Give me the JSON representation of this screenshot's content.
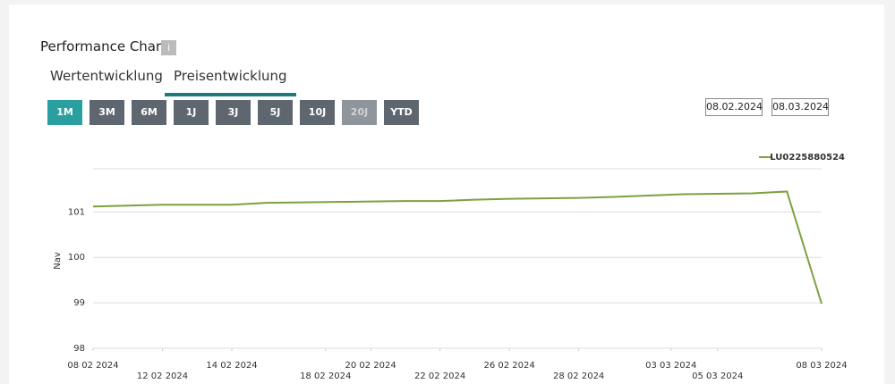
{
  "header": {
    "title": "Performance Chart",
    "info": "i"
  },
  "tabs": [
    "Wertentwicklung",
    "Preisentwicklung"
  ],
  "periods": [
    "1M",
    "3M",
    "6M",
    "1J",
    "3J",
    "5J",
    "10J",
    "20J",
    "YTD"
  ],
  "date_range": {
    "from": "08.02.2024",
    "to": "08.03.2024"
  },
  "chart_data": {
    "type": "line",
    "y_label": "Nav",
    "x": [
      0,
      1,
      2,
      3,
      4,
      5,
      6,
      7,
      8,
      9,
      10,
      11,
      12,
      13,
      14,
      15,
      16,
      17,
      18,
      19,
      20,
      21
    ],
    "xlim": [
      0,
      21
    ],
    "xticks": [
      {
        "value": 0,
        "label": "08 02 2024"
      },
      {
        "value": 2,
        "label": "12 02 2024"
      },
      {
        "value": 4,
        "label": "14 02 2024"
      },
      {
        "value": 6.7,
        "label": "18 02 2024"
      },
      {
        "value": 8,
        "label": "20 02 2024"
      },
      {
        "value": 10,
        "label": "22 02 2024"
      },
      {
        "value": 12,
        "label": "26 02 2024"
      },
      {
        "value": 14,
        "label": "28 02 2024"
      },
      {
        "value": 16.66,
        "label": "03 03 2024"
      },
      {
        "value": 18,
        "label": "05 03 2024"
      },
      {
        "value": 21,
        "label": "08 03 2024"
      }
    ],
    "ylim": [
      98,
      101.95
    ],
    "yticks": [
      98,
      99,
      100,
      101
    ],
    "grid": true,
    "legend": "top-right",
    "series": [
      {
        "name": "LU0225880524",
        "color": "#7ba23f",
        "values": [
          101.12,
          101.14,
          101.16,
          101.16,
          101.16,
          101.2,
          101.21,
          101.22,
          101.23,
          101.24,
          101.24,
          101.27,
          101.29,
          101.3,
          101.31,
          101.33,
          101.36,
          101.39,
          101.4,
          101.41,
          101.45,
          98.98
        ]
      }
    ]
  }
}
